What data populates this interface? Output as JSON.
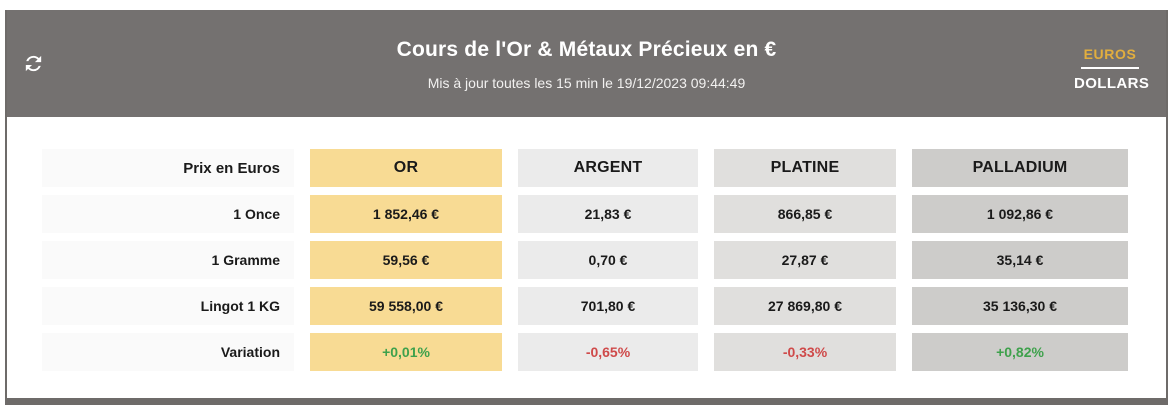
{
  "header": {
    "title": "Cours de l'Or & Métaux Précieux en €",
    "subtitle": "Mis à jour toutes les 15 min le 19/12/2023 09:44:49",
    "refresh_icon": "refresh-icon",
    "currency_toggle": {
      "selected": "EUROS",
      "alternate": "DOLLARS"
    }
  },
  "table": {
    "corner_label": "Prix en Euros",
    "columns": [
      "OR",
      "ARGENT",
      "PLATINE",
      "PALLADIUM"
    ],
    "rows": [
      {
        "label": "1 Once",
        "values": [
          "1 852,46 €",
          "21,83 €",
          "866,85 €",
          "1 092,86 €"
        ],
        "trend": [
          "",
          "",
          "",
          ""
        ]
      },
      {
        "label": "1 Gramme",
        "values": [
          "59,56 €",
          "0,70 €",
          "27,87 €",
          "35,14 €"
        ],
        "trend": [
          "",
          "",
          "",
          ""
        ]
      },
      {
        "label": "Lingot 1 KG",
        "values": [
          "59 558,00 €",
          "701,80 €",
          "27 869,80 €",
          "35 136,30 €"
        ],
        "trend": [
          "",
          "",
          "",
          ""
        ]
      },
      {
        "label": "Variation",
        "values": [
          "+0,01%",
          "-0,65%",
          "-0,33%",
          "+0,82%"
        ],
        "trend": [
          "up",
          "down",
          "down",
          "up"
        ]
      }
    ]
  },
  "colors": {
    "header_bg": "#747170",
    "frame": "#6e6b69",
    "gold_column": "#f8db94",
    "silver_column": "#ebebeb",
    "platinum_column": "#e0dfdd",
    "palladium_column": "#cdccca",
    "label_column": "#fafafa",
    "accent_gold_text": "#e2ae3e",
    "positive": "#3ea14c",
    "negative": "#cf4a4a"
  }
}
